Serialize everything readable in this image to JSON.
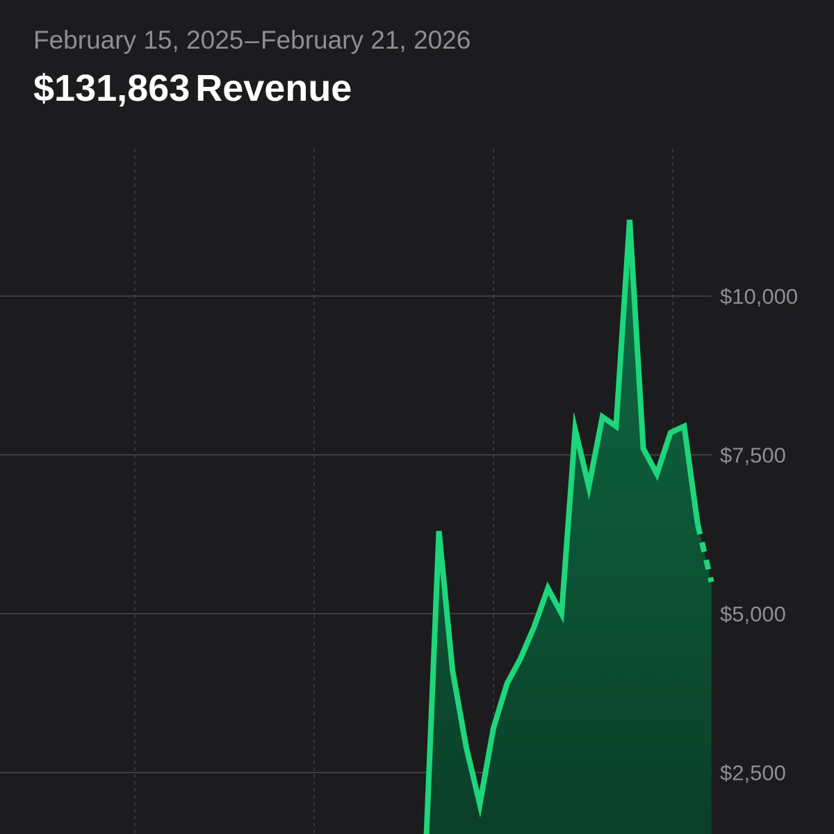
{
  "header": {
    "start_date": "February 15, 2025",
    "separator": "–",
    "end_date": "February 21, 2026",
    "total": "$131,863",
    "metric": "Revenue"
  },
  "colors": {
    "background": "#1c1c1e",
    "line": "#1ed67a",
    "fill_top": "#0f6b43",
    "fill_bottom": "#0a3d28",
    "grid": "#4a4a4e",
    "tick_text": "#8e8e93"
  },
  "chart_data": {
    "type": "area",
    "title": "$131,863 Revenue",
    "xlabel": "",
    "ylabel": "",
    "y_ticks": [
      {
        "value": 10000,
        "label": "$10,000"
      },
      {
        "value": 7500,
        "label": "$7,500"
      },
      {
        "value": 5000,
        "label": "$5,000"
      },
      {
        "value": 2500,
        "label": "$2,500"
      }
    ],
    "ylim": [
      1300,
      12500
    ],
    "vertical_gridlines": 4,
    "grid": true,
    "legend": "none",
    "series": [
      {
        "values": [
          0,
          6300,
          4100,
          2900,
          2000,
          3200,
          3900,
          4300,
          4800,
          5400,
          5000,
          7900,
          7000,
          8100,
          7950,
          11200,
          7600,
          7200,
          7850,
          7950,
          6400
        ]
      }
    ],
    "projected": [
      6400,
      5500
    ]
  }
}
